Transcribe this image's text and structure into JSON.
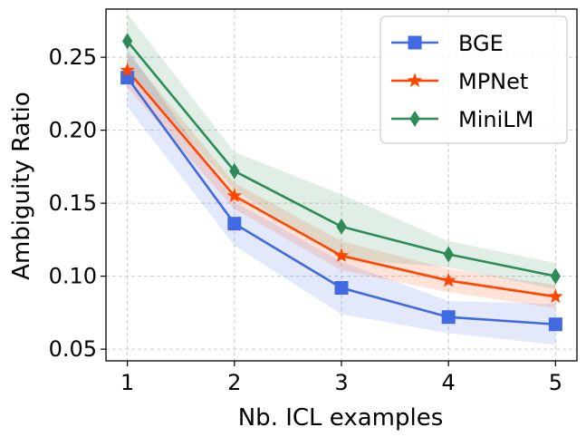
{
  "chart_data": {
    "type": "line",
    "title": "",
    "xlabel": "Nb. ICL examples",
    "ylabel": "Ambiguity Ratio",
    "x": [
      1,
      2,
      3,
      4,
      5
    ],
    "xticks": [
      "1",
      "2",
      "3",
      "4",
      "5"
    ],
    "yticks": [
      "0.05",
      "0.10",
      "0.15",
      "0.20",
      "0.25"
    ],
    "ytick_values": [
      0.05,
      0.1,
      0.15,
      0.2,
      0.25
    ],
    "xlim": [
      0.8,
      5.2
    ],
    "ylim": [
      0.042,
      0.283
    ],
    "grid": true,
    "legend_position": "top-right",
    "series": [
      {
        "name": "BGE",
        "color": "#4169E1",
        "marker": "square",
        "values": [
          0.236,
          0.136,
          0.092,
          0.072,
          0.067
        ],
        "lower": [
          0.216,
          0.121,
          0.074,
          0.061,
          0.053
        ],
        "upper": [
          0.256,
          0.151,
          0.11,
          0.083,
          0.081
        ]
      },
      {
        "name": "MPNet",
        "color": "#FF4500",
        "marker": "star",
        "values": [
          0.241,
          0.155,
          0.114,
          0.097,
          0.086
        ],
        "lower": [
          0.229,
          0.146,
          0.104,
          0.089,
          0.078
        ],
        "upper": [
          0.253,
          0.164,
          0.124,
          0.105,
          0.094
        ]
      },
      {
        "name": "MiniLM",
        "color": "#2E8B57",
        "marker": "diamond",
        "values": [
          0.261,
          0.172,
          0.134,
          0.115,
          0.1
        ],
        "lower": [
          0.242,
          0.159,
          0.112,
          0.106,
          0.091
        ],
        "upper": [
          0.28,
          0.185,
          0.156,
          0.124,
          0.109
        ]
      }
    ]
  }
}
